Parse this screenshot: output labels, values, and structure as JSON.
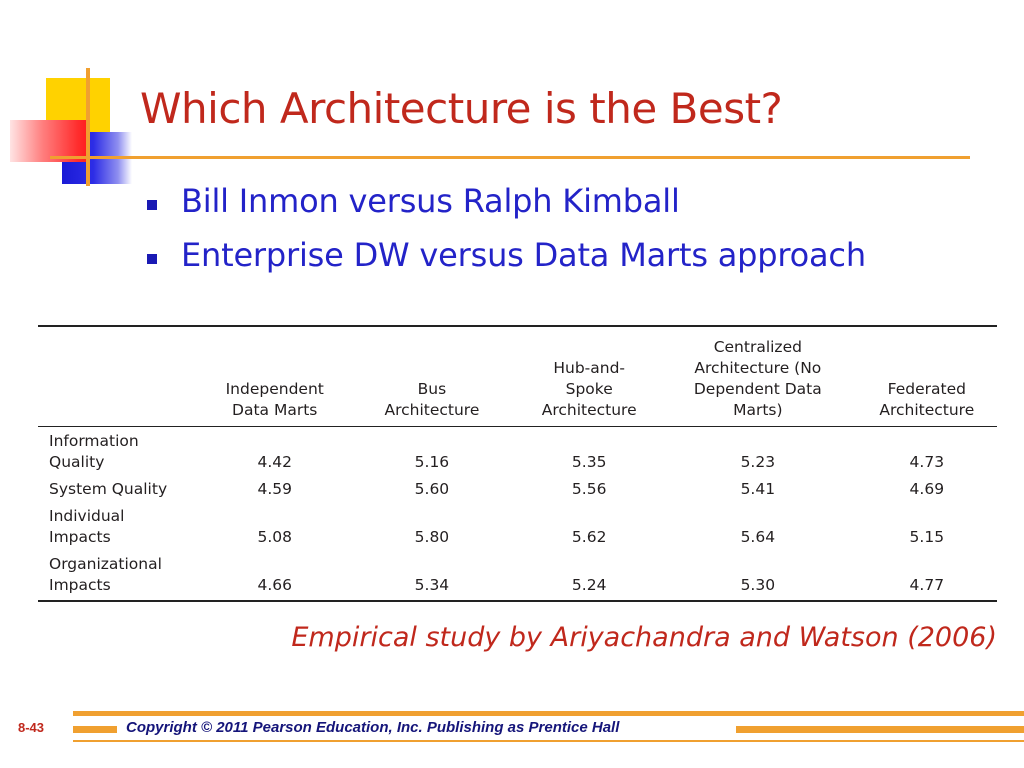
{
  "slide": {
    "title": "Which Architecture is the Best?",
    "bullets": [
      "Bill Inmon versus Ralph Kimball",
      "Enterprise DW versus Data Marts approach"
    ],
    "citation": "Empirical study by Ariyachandra and Watson (2006)",
    "slide_number": "8-43",
    "copyright": "Copyright © 2011 Pearson Education, Inc. Publishing as Prentice Hall"
  },
  "table": {
    "columns": [
      "",
      "Independent Data Marts",
      "Bus Architecture",
      "Hub-and-Spoke Architecture",
      "Centralized Architecture (No Dependent Data Marts)",
      "Federated Architecture"
    ],
    "rows": [
      {
        "label": "Information Quality",
        "values": [
          "4.42",
          "5.16",
          "5.35",
          "5.23",
          "4.73"
        ]
      },
      {
        "label": "System Quality",
        "values": [
          "4.59",
          "5.60",
          "5.56",
          "5.41",
          "4.69"
        ]
      },
      {
        "label": "Individual Impacts",
        "values": [
          "5.08",
          "5.80",
          "5.62",
          "5.64",
          "5.15"
        ]
      },
      {
        "label": "Organizational Impacts",
        "values": [
          "4.66",
          "5.34",
          "5.24",
          "5.30",
          "4.77"
        ]
      }
    ]
  },
  "colors": {
    "title": "#c0281c",
    "bullet_text": "#2323c8",
    "accent_line": "#f0a030",
    "footer_text": "#15157a"
  }
}
